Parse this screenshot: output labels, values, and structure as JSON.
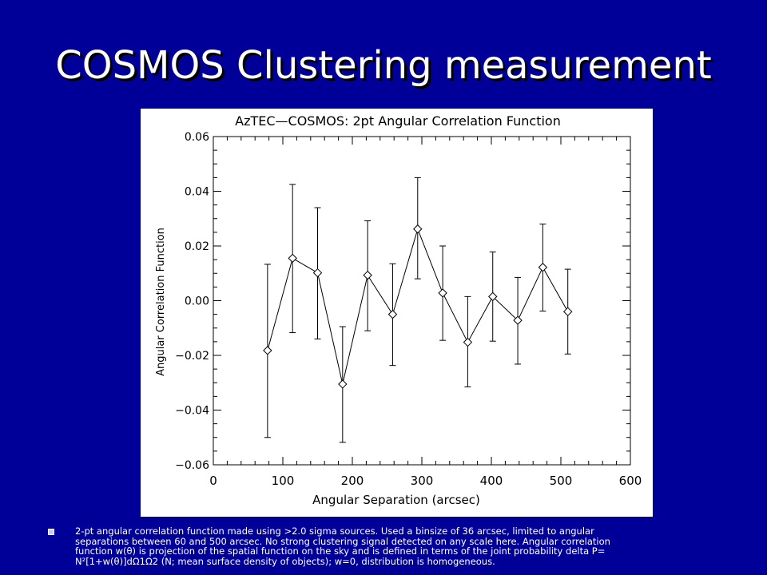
{
  "slide": {
    "title": "COSMOS Clustering measurement"
  },
  "caption": {
    "lines": [
      "2-pt angular correlation function made using >2.0 sigma sources. Used a binsize of 36 arcsec, limited to angular",
      "separations between 60 and 500 arcsec. No strong clustering signal detected on any scale here. Angular correlation",
      "function w(θ) is projection of the spatial function on the sky and is defined in terms of the joint probability delta P=",
      "N²[1+w(θ)]dΩ1Ω2 (N; mean surface density of objects); w=0, distribution is homogeneous."
    ]
  },
  "chart_data": {
    "type": "line",
    "title": "AzTEC—COSMOS: 2pt Angular Correlation Function",
    "xlabel": "Angular Separation (arcsec)",
    "ylabel": "Angular Correlation Function",
    "xlim": [
      0,
      600
    ],
    "ylim": [
      -0.06,
      0.06
    ],
    "xticks": [
      0,
      100,
      200,
      300,
      400,
      500,
      600
    ],
    "xtick_labels": [
      "0",
      "100",
      "200",
      "300",
      "400",
      "500",
      "600"
    ],
    "yticks": [
      -0.06,
      -0.04,
      -0.02,
      0.0,
      0.02,
      0.04,
      0.06
    ],
    "ytick_labels": [
      "−0.06",
      "−0.04",
      "−0.02",
      "0.00",
      "0.02",
      "0.04",
      "0.06"
    ],
    "marker": "diamond",
    "grid": false,
    "series": [
      {
        "x": [
          78,
          114,
          150,
          186,
          222,
          258,
          294,
          330,
          366,
          402,
          438,
          474,
          510
        ],
        "y": [
          -0.0182,
          0.0155,
          0.0102,
          -0.0305,
          0.0093,
          -0.005,
          0.0262,
          0.0028,
          -0.0152,
          0.0015,
          -0.0072,
          0.0122,
          -0.004
        ],
        "err_low": [
          -0.05,
          -0.0117,
          -0.014,
          -0.0518,
          -0.011,
          -0.0237,
          0.008,
          -0.0145,
          -0.0315,
          -0.0148,
          -0.0232,
          -0.0038,
          -0.0195
        ],
        "err_high": [
          0.0133,
          0.0425,
          0.034,
          -0.0095,
          0.0292,
          0.0135,
          0.045,
          0.02,
          0.0015,
          0.0178,
          0.0085,
          0.028,
          0.0115
        ]
      }
    ]
  }
}
